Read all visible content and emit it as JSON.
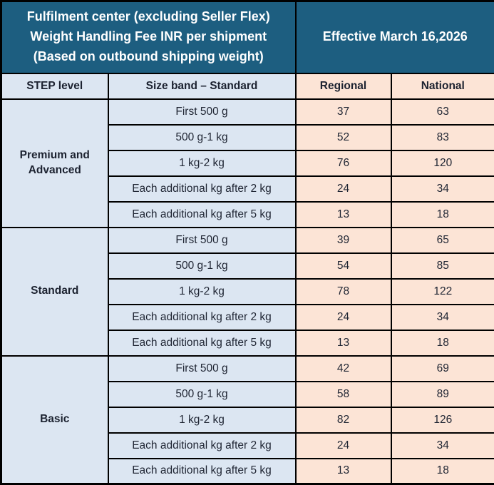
{
  "header": {
    "title": "Fulfilment center (excluding Seller Flex) Weight Handling Fee INR per shipment (Based on outbound shipping weight)",
    "title_lines": [
      "Fulfilment center (excluding Seller Flex)",
      "Weight Handling Fee INR per shipment",
      "(Based on outbound shipping weight)"
    ],
    "effective": "Effective March 16,2026"
  },
  "columns": {
    "step_level": "STEP level",
    "size_band": "Size band – Standard",
    "regional": "Regional",
    "national": "National"
  },
  "groups": [
    {
      "label": "Premium and Advanced",
      "rows": [
        {
          "size_band": "First 500 g",
          "regional": "37",
          "national": "63"
        },
        {
          "size_band": "500 g-1 kg",
          "regional": "52",
          "national": "83"
        },
        {
          "size_band": "1 kg-2 kg",
          "regional": "76",
          "national": "120"
        },
        {
          "size_band": "Each additional kg after 2 kg",
          "regional": "24",
          "national": "34"
        },
        {
          "size_band": "Each additional kg after 5 kg",
          "regional": "13",
          "national": "18"
        }
      ]
    },
    {
      "label": "Standard",
      "rows": [
        {
          "size_band": "First 500 g",
          "regional": "39",
          "national": "65"
        },
        {
          "size_band": "500 g-1 kg",
          "regional": "54",
          "national": "85"
        },
        {
          "size_band": "1 kg-2 kg",
          "regional": "78",
          "national": "122"
        },
        {
          "size_band": "Each additional kg after 2 kg",
          "regional": "24",
          "national": "34"
        },
        {
          "size_band": "Each additional kg after 5 kg",
          "regional": "13",
          "national": "18"
        }
      ]
    },
    {
      "label": "Basic",
      "rows": [
        {
          "size_band": "First 500 g",
          "regional": "42",
          "national": "69"
        },
        {
          "size_band": "500 g-1 kg",
          "regional": "58",
          "national": "89"
        },
        {
          "size_band": "1 kg-2 kg",
          "regional": "82",
          "national": "126"
        },
        {
          "size_band": "Each additional kg after 2 kg",
          "regional": "24",
          "national": "34"
        },
        {
          "size_band": "Each additional kg after 5 kg",
          "regional": "13",
          "national": "18"
        }
      ]
    }
  ],
  "colors": {
    "header_bg": "#1d5e80",
    "size_band_bg": "#dce6f2",
    "fee_bg": "#fce4d6",
    "border": "#000000",
    "header_text": "#ffffff",
    "body_text": "#1c2230"
  }
}
